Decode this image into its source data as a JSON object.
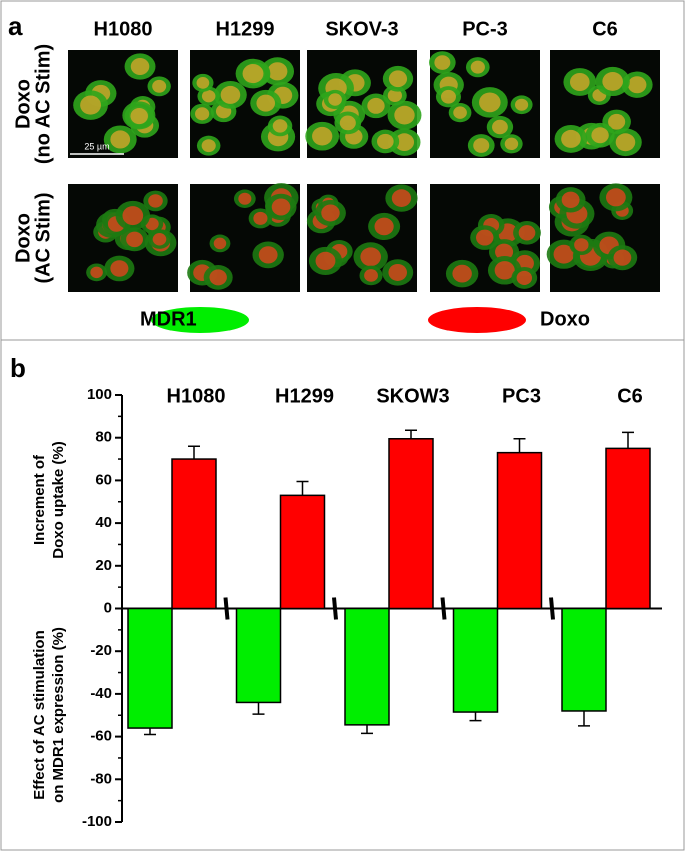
{
  "panel_a": {
    "label": "a",
    "columns": [
      "H1080",
      "H1299",
      "SKOV-3",
      "PC-3",
      "C6"
    ],
    "rows": [
      [
        "Doxo",
        "(no AC Stim)"
      ],
      [
        "Doxo",
        "(AC Stim)"
      ]
    ],
    "scale_bar": "25 µm"
  },
  "chart_data": {
    "type": "bar",
    "label": "b",
    "categories": [
      "H1080",
      "H1299",
      "SKOW3",
      "PC3",
      "C6"
    ],
    "series": [
      {
        "name": "MDR1",
        "color": "#00ee00",
        "values": [
          -56,
          -44,
          -54.5,
          -48.5,
          -48
        ],
        "errors": [
          3,
          5.5,
          4,
          4,
          7
        ]
      },
      {
        "name": "Doxo",
        "color": "#ff0000",
        "values": [
          70,
          53,
          79.5,
          73,
          75
        ],
        "errors": [
          6,
          6.5,
          4,
          6.5,
          7.5
        ]
      }
    ],
    "ylabel_top": [
      "Increment of",
      "Doxo uptake (%)"
    ],
    "ylabel_bottom": [
      "Effect of AC stimulation",
      "on MDR1 expression (%)"
    ],
    "ylim": [
      -100,
      100
    ],
    "yticks": [
      -100,
      -80,
      -60,
      -40,
      -20,
      0,
      20,
      40,
      60,
      80,
      100
    ]
  }
}
